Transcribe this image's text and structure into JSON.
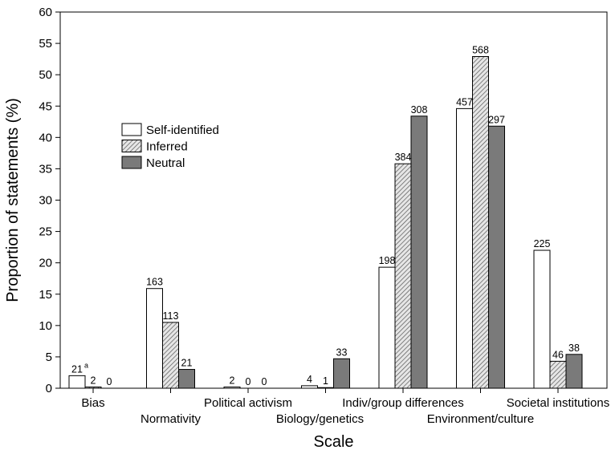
{
  "chart_data": {
    "type": "bar",
    "xlabel": "Scale",
    "ylabel": "Proportion of statements (%)",
    "ylim": [
      0,
      60
    ],
    "yticks": [
      0,
      5,
      10,
      15,
      20,
      25,
      30,
      35,
      40,
      45,
      50,
      55,
      60
    ],
    "categories": [
      "Bias",
      "Normativity",
      "Political activism",
      "Biology/genetics",
      "Indiv/group differences",
      "Environment/culture",
      "Societal institutions"
    ],
    "legend": {
      "placement": "upper-left inside plot"
    },
    "series": [
      {
        "name": "Self-identified",
        "pattern": "white",
        "values": [
          2.0,
          15.9,
          0.2,
          0.4,
          19.3,
          44.6,
          22.0
        ],
        "labels": [
          "21",
          "163",
          "2",
          "4",
          "198",
          "457",
          "225"
        ]
      },
      {
        "name": "Inferred",
        "pattern": "hatched",
        "values": [
          0.2,
          10.5,
          0.0,
          0.1,
          35.8,
          52.9,
          4.3
        ],
        "labels": [
          "2",
          "113",
          "0",
          "1",
          "384",
          "568",
          "46"
        ]
      },
      {
        "name": "Neutral",
        "pattern": "gray",
        "color": "#7a7a7a",
        "values": [
          0.0,
          3.0,
          0.0,
          4.7,
          43.4,
          41.8,
          5.4
        ],
        "labels": [
          "0",
          "21",
          "0",
          "33",
          "308",
          "297",
          "38"
        ]
      }
    ],
    "annotations": [
      {
        "series": "Self-identified",
        "category": "Bias",
        "text": "a"
      }
    ]
  }
}
